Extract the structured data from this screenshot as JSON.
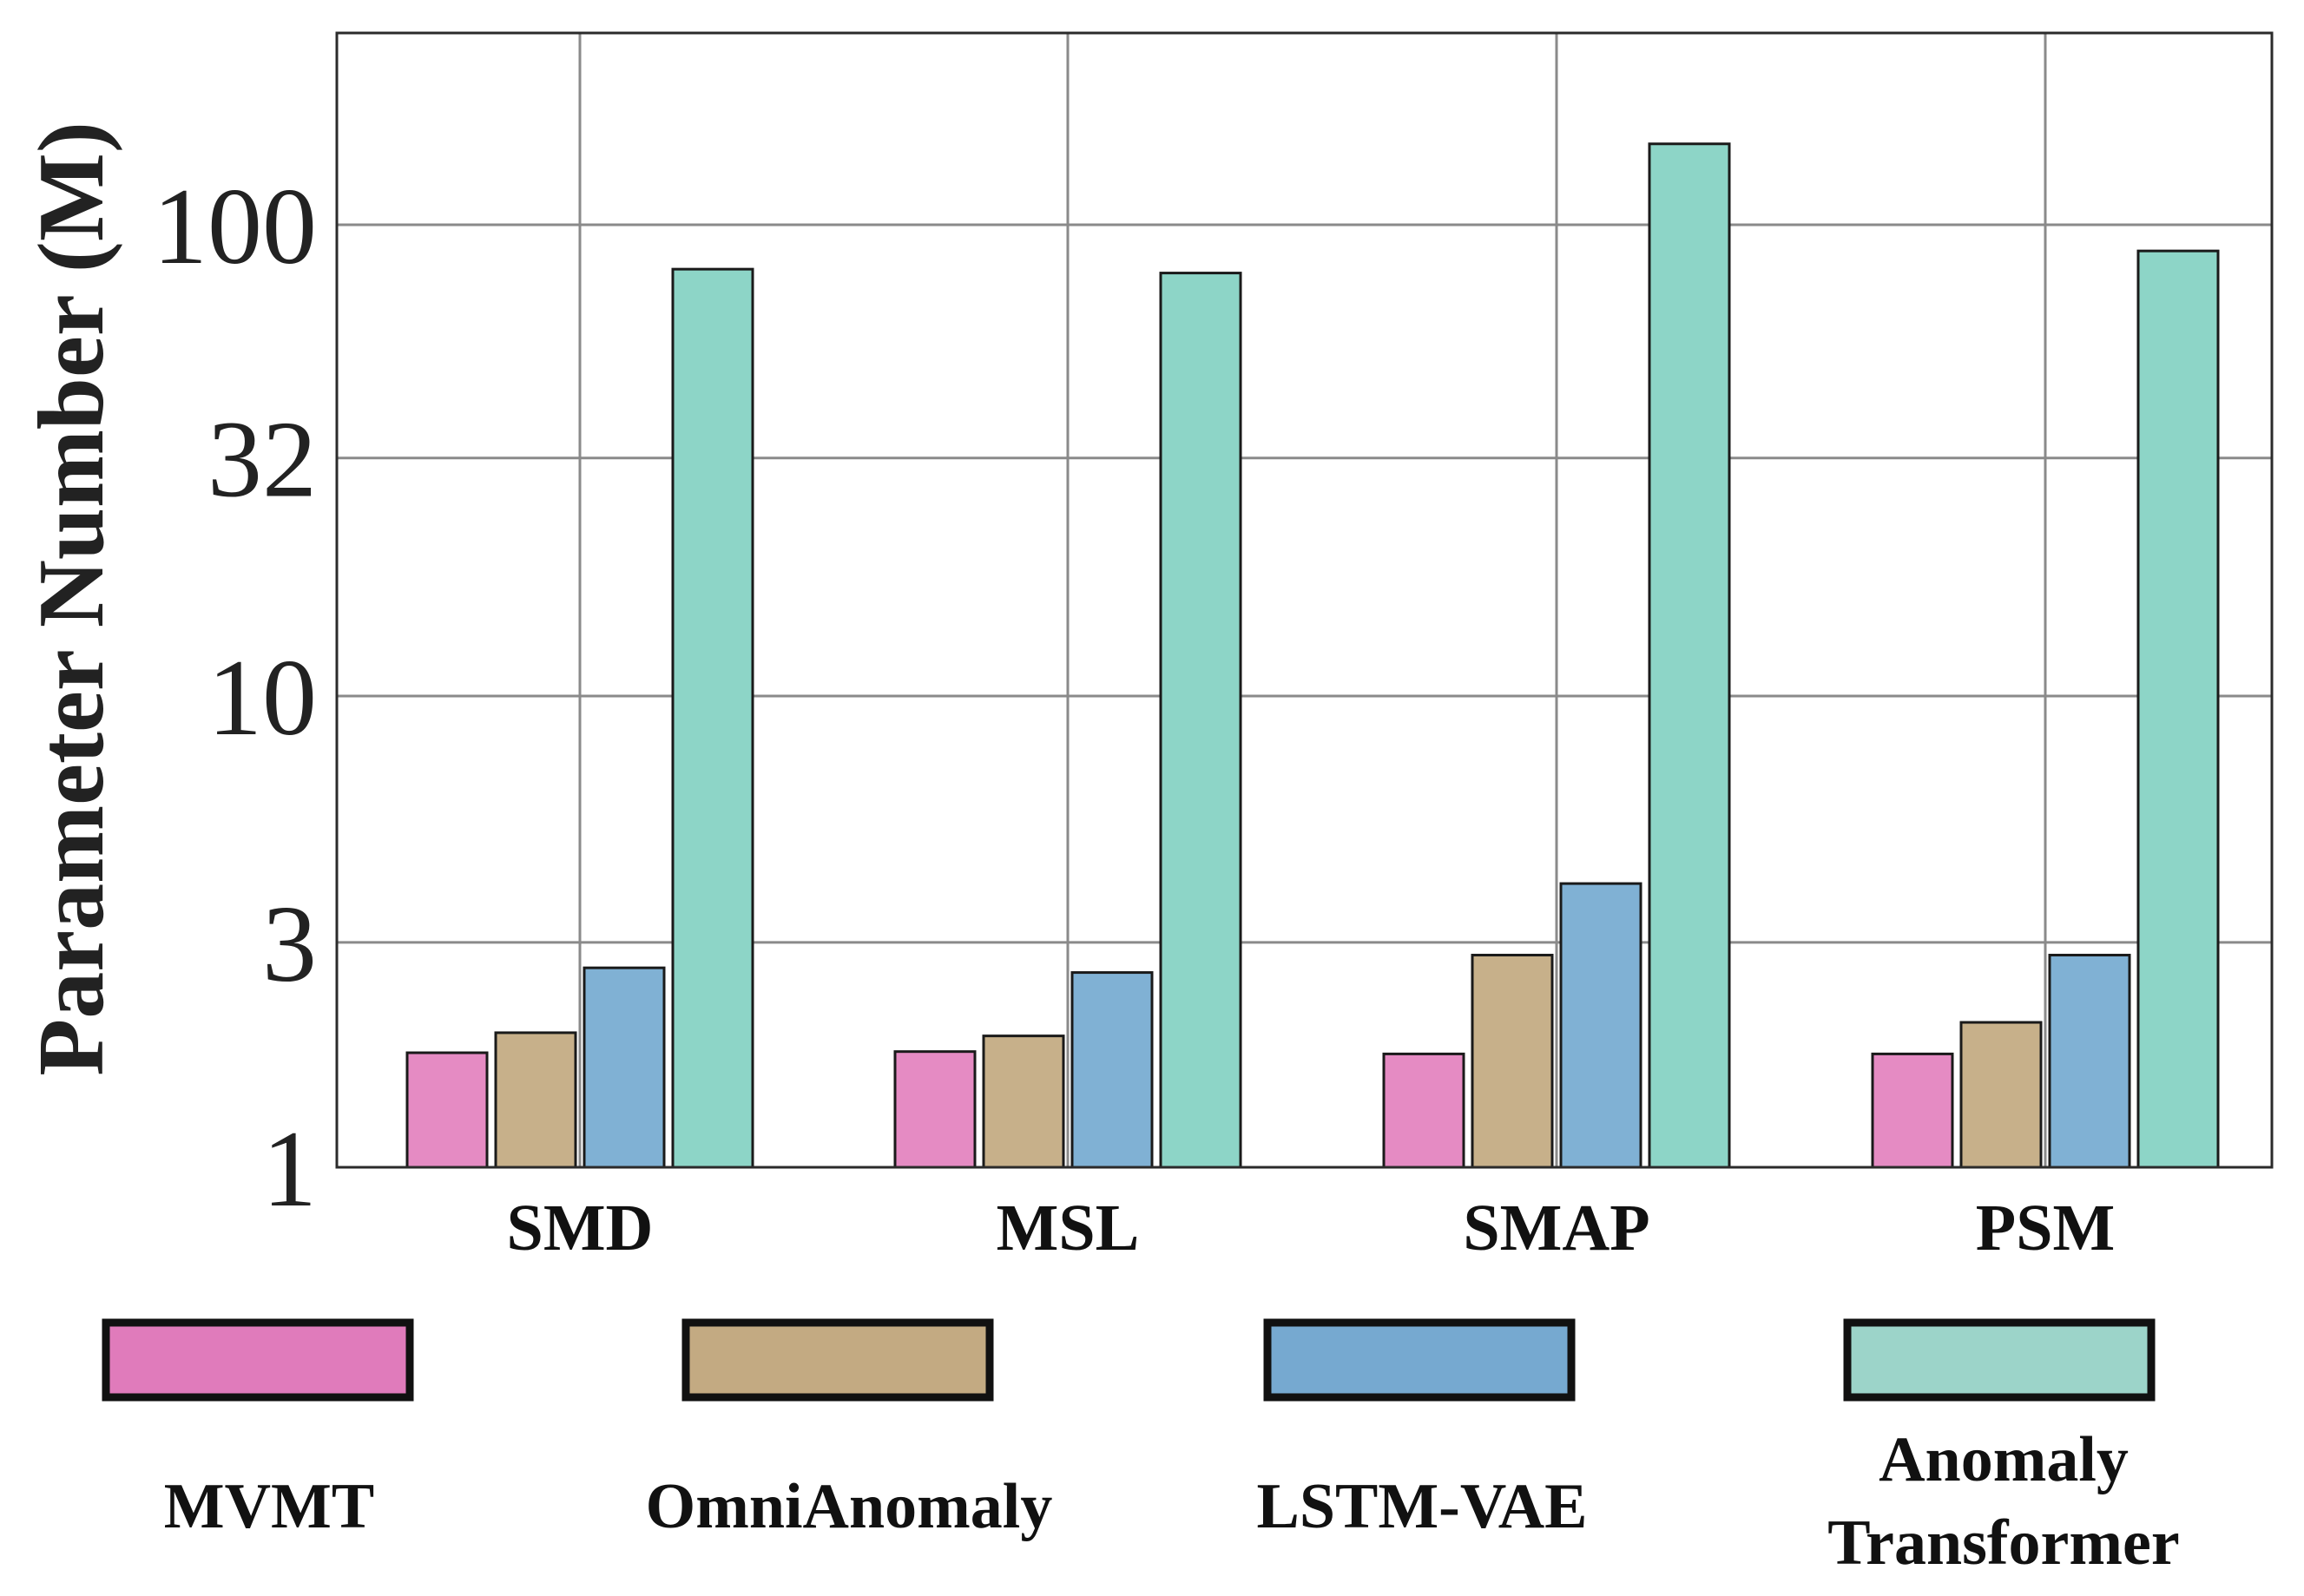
{
  "chart_data": {
    "type": "bar",
    "title": "",
    "xlabel": "",
    "ylabel": "Parameter Number (M)",
    "yscale": "log",
    "ylim": [
      1,
      250
    ],
    "yticks": [
      1,
      3,
      10,
      32,
      100
    ],
    "ytick_labels": [
      "1",
      "3",
      "10",
      "32",
      "100"
    ],
    "grid": true,
    "legend_position": "bottom",
    "categories": [
      "SMD",
      "MSL",
      "SMAP",
      "PSM"
    ],
    "series": [
      {
        "name": "MVMT",
        "label_lines": [
          "MVMT"
        ],
        "color": "#e58bc3",
        "legend_color": "#e07bbb",
        "values": [
          1.75,
          1.76,
          1.74,
          1.74
        ]
      },
      {
        "name": "OmniAnomaly",
        "label_lines": [
          "OmniAnomaly"
        ],
        "color": "#c7b08a",
        "legend_color": "#c3aa82",
        "values": [
          1.93,
          1.9,
          2.82,
          2.03
        ]
      },
      {
        "name": "LSTM-VAE",
        "label_lines": [
          "LSTM-VAE"
        ],
        "color": "#80b1d4",
        "legend_color": "#76a9d0",
        "values": [
          2.65,
          2.59,
          4.0,
          2.82
        ]
      },
      {
        "name": "Anomaly Transformer",
        "label_lines": [
          "Anomaly",
          "Transformer"
        ],
        "color": "#8dd5c7",
        "legend_color": "#9cd4c9",
        "values": [
          80.5,
          79.0,
          148.5,
          88.0
        ]
      }
    ]
  }
}
